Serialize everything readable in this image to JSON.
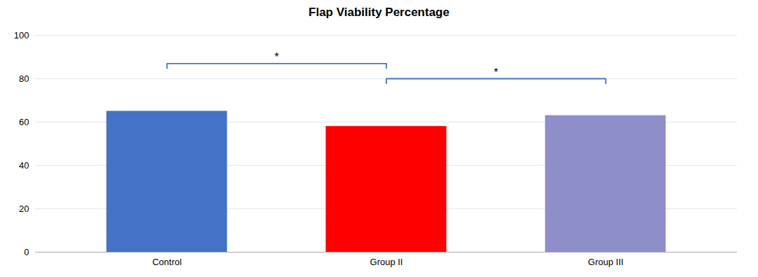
{
  "chart_data": {
    "type": "bar",
    "title": "Flap Viability Percentage",
    "categories": [
      "Control",
      "Group II",
      "Group III"
    ],
    "values": [
      65,
      58,
      63
    ],
    "colors": [
      "#4472C4",
      "#FF0000",
      "#8E8ECA"
    ],
    "ylim": [
      0,
      100
    ],
    "yticks": [
      0,
      20,
      40,
      60,
      80,
      100
    ],
    "grid": true,
    "annotations": [
      {
        "text": "*",
        "x1": "Control",
        "x2": "Group II",
        "y": 87,
        "color": "#4472C4"
      },
      {
        "text": "*",
        "x1": "Group II",
        "x2": "Group III",
        "y": 80,
        "color": "#4472C4"
      }
    ]
  }
}
